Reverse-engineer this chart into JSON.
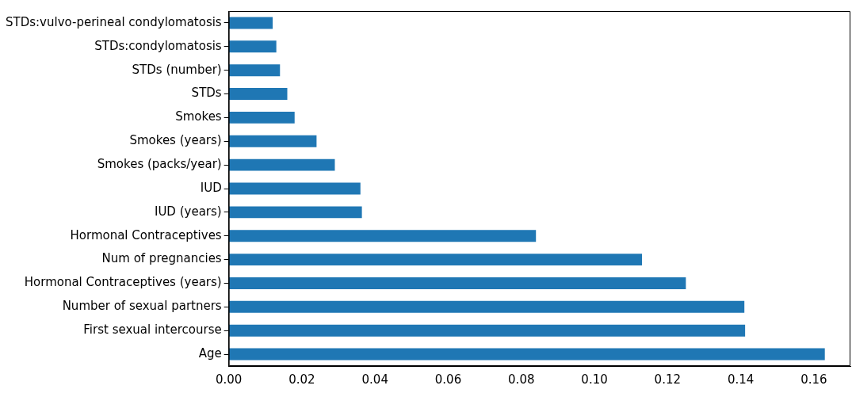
{
  "chart_data": {
    "type": "bar",
    "orientation": "horizontal",
    "categories": [
      "STDs:vulvo-perineal condylomatosis",
      "STDs:condylomatosis",
      "STDs (number)",
      "STDs",
      "Smokes",
      "Smokes (years)",
      "Smokes (packs/year)",
      "IUD",
      "IUD (years)",
      "Hormonal Contraceptives",
      "Num of pregnancies",
      "Hormonal Contraceptives (years)",
      "Number of sexual partners",
      "First sexual intercourse",
      "Age"
    ],
    "values": [
      0.012,
      0.013,
      0.014,
      0.016,
      0.018,
      0.024,
      0.029,
      0.036,
      0.0364,
      0.084,
      0.113,
      0.125,
      0.141,
      0.1412,
      0.163
    ],
    "color": "#1f77b4",
    "xlim": [
      0,
      0.17
    ],
    "xticks": [
      {
        "value": 0,
        "label": "0.00"
      },
      {
        "value": 0.02,
        "label": "0.02"
      },
      {
        "value": 0.04,
        "label": "0.04"
      },
      {
        "value": 0.06,
        "label": "0.06"
      },
      {
        "value": 0.08,
        "label": "0.08"
      },
      {
        "value": 0.1,
        "label": "0.10"
      },
      {
        "value": 0.12,
        "label": "0.12"
      },
      {
        "value": 0.14,
        "label": "0.14"
      },
      {
        "value": 0.16,
        "label": "0.16"
      }
    ],
    "grid": false,
    "legend": false
  }
}
